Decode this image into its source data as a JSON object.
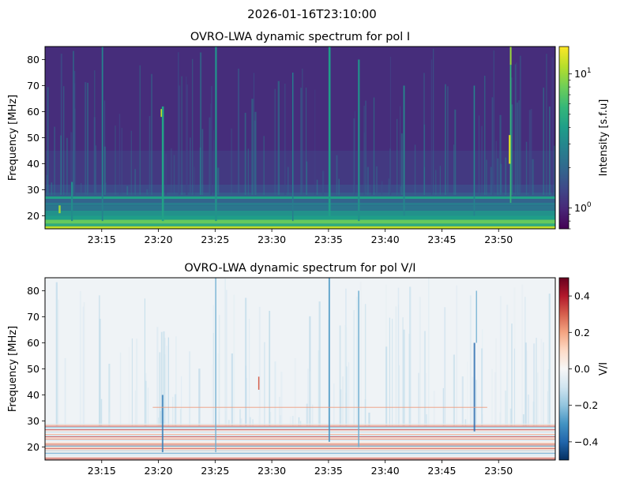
{
  "suptitle": "2026-01-16T23:10:00",
  "colors": {
    "viridis": [
      "#440154",
      "#482878",
      "#3e4989",
      "#31688e",
      "#26828e",
      "#1f9e89",
      "#35b779",
      "#6ece58",
      "#b5de2b",
      "#fde725"
    ],
    "rdbu_r": [
      "#053061",
      "#2166ac",
      "#4393c3",
      "#92c5de",
      "#d1e5f0",
      "#f7f7f7",
      "#fddbc7",
      "#f4a582",
      "#d6604d",
      "#b2182b",
      "#67001f"
    ]
  },
  "chart_data": [
    {
      "type": "heatmap",
      "title": "OVRO-LWA dynamic spectrum for pol I",
      "xlabel": "",
      "ylabel": "Frequency [MHz]",
      "x_range": [
        "23:10:00",
        "23:55:00"
      ],
      "x_ticks": [
        "23:15",
        "23:20",
        "23:25",
        "23:30",
        "23:35",
        "23:40",
        "23:45",
        "23:50"
      ],
      "ylim": [
        15,
        85
      ],
      "y_ticks": [
        20,
        30,
        40,
        50,
        60,
        70,
        80
      ],
      "y_tick_labels": [
        "20",
        "30",
        "40",
        "50",
        "60",
        "70",
        "80"
      ],
      "colormap": "viridis",
      "color_scale": "log",
      "clim": [
        0.7,
        16
      ],
      "colorbar_label": "Intensity [s.f.u]",
      "colorbar_tick_labels": [
        "10^0",
        "10^1"
      ],
      "colorbar_ticks": [
        1,
        10
      ],
      "features": {
        "low_freq_band_MHz": [
          15,
          28
        ],
        "bursts_at": [
          "23:12",
          "23:15",
          "23:20",
          "23:25",
          "23:35",
          "23:38",
          "23:42",
          "23:48",
          "23:51"
        ]
      }
    },
    {
      "type": "heatmap",
      "title": "OVRO-LWA dynamic spectrum for pol V/I",
      "xlabel": "",
      "ylabel": "Frequency [MHz]",
      "x_range": [
        "23:10:00",
        "23:55:00"
      ],
      "x_ticks": [
        "23:15",
        "23:20",
        "23:25",
        "23:30",
        "23:35",
        "23:40",
        "23:45",
        "23:50"
      ],
      "ylim": [
        15,
        85
      ],
      "y_ticks": [
        20,
        30,
        40,
        50,
        60,
        70,
        80
      ],
      "y_tick_labels": [
        "20",
        "30",
        "40",
        "50",
        "60",
        "70",
        "80"
      ],
      "colormap": "RdBu_r",
      "color_scale": "linear",
      "clim": [
        -0.5,
        0.5
      ],
      "colorbar_label": "V/I",
      "colorbar_ticks": [
        0.4,
        0.2,
        0.0,
        -0.2,
        -0.4
      ],
      "colorbar_tick_labels": [
        "0.4",
        "0.2",
        "0.0",
        "−0.2",
        "−0.4"
      ]
    }
  ]
}
